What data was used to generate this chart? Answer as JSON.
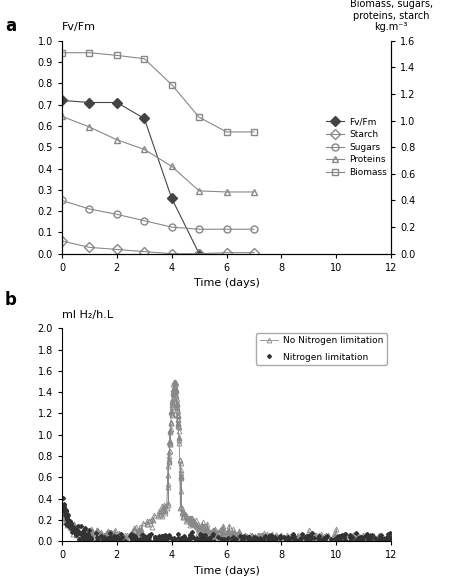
{
  "panel_a": {
    "ylabel_left": "Fv/Fm",
    "ylabel_right": "Biomass, sugars,\nproteins, starch\nkg.m⁻³",
    "xlabel": "Time (days)",
    "xlim": [
      0,
      12
    ],
    "ylim_left": [
      0.0,
      1.0
    ],
    "ylim_right": [
      0.0,
      1.6
    ],
    "fvfm": {
      "x": [
        0,
        1,
        2,
        3,
        4,
        5
      ],
      "y": [
        0.72,
        0.71,
        0.71,
        0.635,
        0.26,
        0.0
      ],
      "label": "Fv/Fm",
      "color": "#444444",
      "marker": "D",
      "markersize": 5
    },
    "starch": {
      "x": [
        0,
        1,
        2,
        3,
        4,
        5,
        6,
        7
      ],
      "y": [
        0.06,
        0.03,
        0.02,
        0.01,
        0.0,
        0.0,
        0.005,
        0.005
      ],
      "label": "Starch",
      "color": "#888888",
      "marker": "D",
      "markersize": 5
    },
    "sugars": {
      "x": [
        0,
        1,
        2,
        3,
        4,
        5,
        6,
        7
      ],
      "y": [
        0.25,
        0.21,
        0.185,
        0.155,
        0.125,
        0.115,
        0.115,
        0.115
      ],
      "label": "Sugars",
      "color": "#888888",
      "marker": "o",
      "markersize": 5
    },
    "proteins": {
      "x": [
        0,
        1,
        2,
        3,
        4,
        5,
        6,
        7
      ],
      "y": [
        0.645,
        0.595,
        0.535,
        0.49,
        0.41,
        0.295,
        0.29,
        0.29
      ],
      "label": "Proteins",
      "color": "#888888",
      "marker": "^",
      "markersize": 5
    },
    "biomass": {
      "x": [
        0,
        1,
        2,
        3,
        4,
        5,
        6,
        7
      ],
      "y": [
        1.51,
        1.51,
        1.49,
        1.465,
        1.27,
        1.025,
        0.915,
        0.915
      ],
      "label": "Biomass",
      "color": "#888888",
      "marker": "s",
      "markersize": 5
    },
    "yticks_left": [
      0.0,
      0.1,
      0.2,
      0.3,
      0.4,
      0.5,
      0.6,
      0.7,
      0.8,
      0.9,
      1.0
    ],
    "yticks_right": [
      0.0,
      0.2,
      0.4,
      0.6,
      0.8,
      1.0,
      1.2,
      1.4,
      1.6
    ],
    "xticks": [
      0,
      2,
      4,
      6,
      8,
      10,
      12
    ]
  },
  "panel_b": {
    "ylabel": "ml H₂/h.L",
    "xlabel": "Time (days)",
    "xlim": [
      0,
      12
    ],
    "ylim": [
      0,
      2
    ],
    "yticks": [
      0,
      0.2,
      0.4,
      0.6,
      0.8,
      1.0,
      1.2,
      1.4,
      1.6,
      1.8,
      2.0
    ],
    "xticks": [
      0,
      2,
      4,
      6,
      8,
      10,
      12
    ],
    "nitrogen_lim_label": "Nitrogen limitation",
    "no_nitrogen_lim_label": "No Nitrogen limitation"
  }
}
